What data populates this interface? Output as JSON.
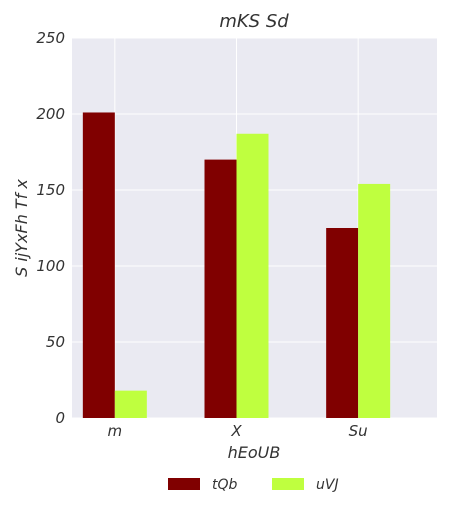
{
  "chart_data": {
    "type": "bar",
    "title": "mKS Sd",
    "xlabel": "hEoUB",
    "ylabel": "S ijYxFh Tf  x",
    "categories": [
      "m",
      "X",
      "Su"
    ],
    "series": [
      {
        "name": "tQb",
        "values": [
          201,
          170,
          125
        ],
        "color": "#800000"
      },
      {
        "name": "uVJ",
        "values": [
          18,
          187,
          154
        ],
        "color": "#bfff3f"
      }
    ],
    "ylim": [
      0,
      250
    ],
    "yticks": [
      "0",
      "50",
      "100",
      "150",
      "200",
      "250"
    ],
    "grid": true,
    "legend_position": "bottom-center"
  }
}
